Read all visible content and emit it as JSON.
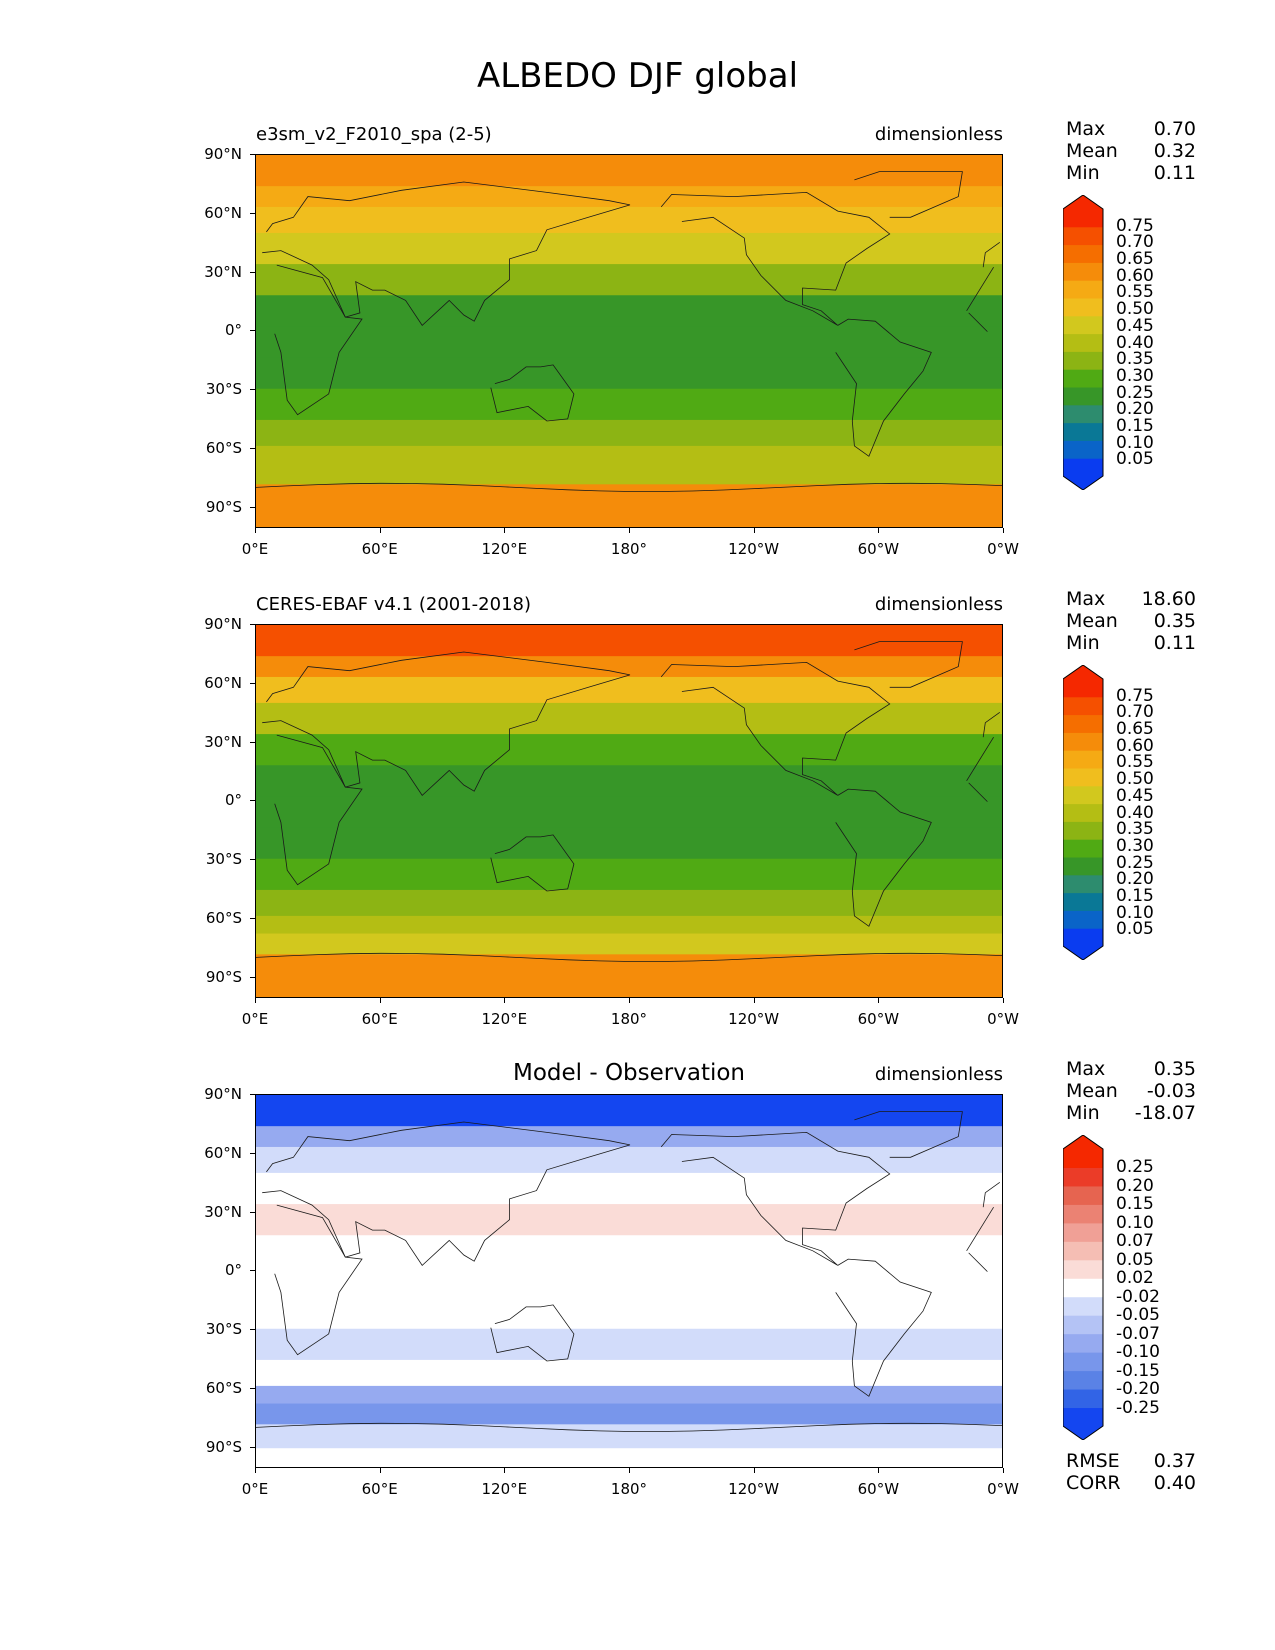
{
  "figure_title": "ALBEDO DJF global",
  "x_ticks": [
    "0°E",
    "60°E",
    "120°E",
    "180°",
    "120°W",
    "60°W",
    "0°W"
  ],
  "y_ticks": [
    "90°N",
    "60°N",
    "30°N",
    "0°",
    "30°S",
    "60°S",
    "90°S"
  ],
  "panels": [
    {
      "title": "e3sm_v2_F2010_spa (2-5)",
      "title_style": "left",
      "units": "dimensionless",
      "stats": [
        {
          "label": "Max",
          "value": "0.70"
        },
        {
          "label": "Mean",
          "value": "0.32"
        },
        {
          "label": "Min",
          "value": "0.11"
        }
      ],
      "colorbar_labels": [
        "0.75",
        "0.70",
        "0.65",
        "0.60",
        "0.55",
        "0.50",
        "0.45",
        "0.40",
        "0.35",
        "0.30",
        "0.25",
        "0.20",
        "0.15",
        "0.10",
        "0.05"
      ]
    },
    {
      "title": "CERES-EBAF v4.1 (2001-2018)",
      "title_style": "left",
      "units": "dimensionless",
      "stats": [
        {
          "label": "Max",
          "value": "18.60"
        },
        {
          "label": "Mean",
          "value": "0.35"
        },
        {
          "label": "Min",
          "value": "0.11"
        }
      ],
      "colorbar_labels": [
        "0.75",
        "0.70",
        "0.65",
        "0.60",
        "0.55",
        "0.50",
        "0.45",
        "0.40",
        "0.35",
        "0.30",
        "0.25",
        "0.20",
        "0.15",
        "0.10",
        "0.05"
      ]
    },
    {
      "title": "Model - Observation",
      "title_style": "center",
      "units": "dimensionless",
      "stats": [
        {
          "label": "Max",
          "value": "0.35"
        },
        {
          "label": "Mean",
          "value": "-0.03"
        },
        {
          "label": "Min",
          "value": "-18.07"
        }
      ],
      "colorbar_labels": [
        "0.25",
        "0.20",
        "0.15",
        "0.10",
        "0.07",
        "0.05",
        "0.02",
        "-0.02",
        "-0.05",
        "-0.07",
        "-0.10",
        "-0.15",
        "-0.20",
        "-0.25"
      ],
      "metrics": [
        {
          "label": "RMSE",
          "value": "0.37"
        },
        {
          "label": "CORR",
          "value": "0.40"
        }
      ]
    }
  ],
  "colors": {
    "albedo_scale": [
      "#0a3cf0",
      "#0a64c8",
      "#0a7896",
      "#2d8c6e",
      "#379628",
      "#50aa14",
      "#8cb414",
      "#b4be14",
      "#d2c81e",
      "#f0be1e",
      "#f5aa14",
      "#f58c0a",
      "#f56e00",
      "#f55000",
      "#f52800"
    ],
    "diff_scale": [
      "#1446f0",
      "#3264e6",
      "#5a82e6",
      "#7896eb",
      "#96aaf0",
      "#b4c3f5",
      "#d2dcfa",
      "#ffffff",
      "#fadcd7",
      "#f5beb4",
      "#f0a096",
      "#eb8273",
      "#e66450",
      "#eb3c28",
      "#f52800"
    ]
  },
  "chart_data": [
    {
      "type": "heatmap",
      "title": "e3sm_v2_F2010_spa (2-5)",
      "variable": "ALBEDO",
      "season": "DJF",
      "units": "dimensionless",
      "x_range": [
        "0°E",
        "0°W"
      ],
      "y_range": [
        "90°S",
        "90°N"
      ],
      "lat_bands": [
        {
          "lat": 80,
          "value": 0.62
        },
        {
          "lat": 70,
          "value": 0.58
        },
        {
          "lat": 60,
          "value": 0.55
        },
        {
          "lat": 45,
          "value": 0.47
        },
        {
          "lat": 30,
          "value": 0.33
        },
        {
          "lat": 15,
          "value": 0.24
        },
        {
          "lat": 0,
          "value": 0.22
        },
        {
          "lat": -15,
          "value": 0.23
        },
        {
          "lat": -30,
          "value": 0.27
        },
        {
          "lat": -45,
          "value": 0.33
        },
        {
          "lat": -55,
          "value": 0.39
        },
        {
          "lat": -62,
          "value": 0.42
        },
        {
          "lat": -75,
          "value": 0.64
        },
        {
          "lat": -85,
          "value": 0.65
        }
      ],
      "colorbar": {
        "min": 0.05,
        "max": 0.75,
        "levels": [
          0.05,
          0.1,
          0.15,
          0.2,
          0.25,
          0.3,
          0.35,
          0.4,
          0.45,
          0.5,
          0.55,
          0.6,
          0.65,
          0.7,
          0.75
        ]
      },
      "stats": {
        "max": 0.7,
        "mean": 0.32,
        "min": 0.11
      }
    },
    {
      "type": "heatmap",
      "title": "CERES-EBAF v4.1 (2001-2018)",
      "variable": "ALBEDO",
      "season": "DJF",
      "units": "dimensionless",
      "x_range": [
        "0°E",
        "0°W"
      ],
      "y_range": [
        "90°S",
        "90°N"
      ],
      "lat_bands": [
        {
          "lat": 80,
          "value": 0.72
        },
        {
          "lat": 70,
          "value": 0.62
        },
        {
          "lat": 60,
          "value": 0.55
        },
        {
          "lat": 45,
          "value": 0.45
        },
        {
          "lat": 30,
          "value": 0.3
        },
        {
          "lat": 15,
          "value": 0.23
        },
        {
          "lat": 0,
          "value": 0.22
        },
        {
          "lat": -15,
          "value": 0.24
        },
        {
          "lat": -30,
          "value": 0.27
        },
        {
          "lat": -45,
          "value": 0.34
        },
        {
          "lat": -55,
          "value": 0.44
        },
        {
          "lat": -62,
          "value": 0.5
        },
        {
          "lat": -75,
          "value": 0.63
        },
        {
          "lat": -85,
          "value": 0.64
        }
      ],
      "colorbar": {
        "min": 0.05,
        "max": 0.75,
        "levels": [
          0.05,
          0.1,
          0.15,
          0.2,
          0.25,
          0.3,
          0.35,
          0.4,
          0.45,
          0.5,
          0.55,
          0.6,
          0.65,
          0.7,
          0.75
        ]
      },
      "stats": {
        "max": 18.6,
        "mean": 0.35,
        "min": 0.11
      }
    },
    {
      "type": "heatmap",
      "title": "Model - Observation",
      "variable": "ALBEDO",
      "season": "DJF",
      "units": "dimensionless",
      "x_range": [
        "0°E",
        "0°W"
      ],
      "y_range": [
        "90°S",
        "90°N"
      ],
      "lat_bands": [
        {
          "lat": 80,
          "value": -0.25
        },
        {
          "lat": 70,
          "value": -0.07
        },
        {
          "lat": 60,
          "value": -0.02
        },
        {
          "lat": 45,
          "value": 0.02
        },
        {
          "lat": 30,
          "value": 0.05
        },
        {
          "lat": 15,
          "value": 0.0
        },
        {
          "lat": 0,
          "value": 0.0
        },
        {
          "lat": -15,
          "value": 0.02
        },
        {
          "lat": -30,
          "value": -0.02
        },
        {
          "lat": -45,
          "value": 0.0
        },
        {
          "lat": -55,
          "value": -0.07
        },
        {
          "lat": -62,
          "value": -0.12
        },
        {
          "lat": -75,
          "value": -0.02
        },
        {
          "lat": -85,
          "value": 0.0
        }
      ],
      "colorbar": {
        "min": -0.25,
        "max": 0.25,
        "levels": [
          -0.25,
          -0.2,
          -0.15,
          -0.1,
          -0.07,
          -0.05,
          -0.02,
          0.02,
          0.05,
          0.07,
          0.1,
          0.15,
          0.2,
          0.25
        ]
      },
      "stats": {
        "max": 0.35,
        "mean": -0.03,
        "min": -18.07
      },
      "metrics": {
        "rmse": 0.37,
        "corr": 0.4
      }
    }
  ]
}
